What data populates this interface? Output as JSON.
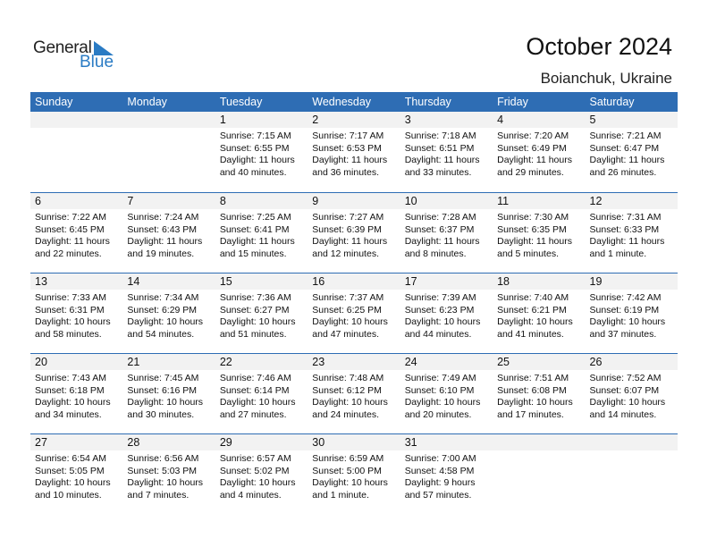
{
  "logo": {
    "general": "General",
    "blue": "Blue"
  },
  "title": "October 2024",
  "location": "Boianchuk, Ukraine",
  "colors": {
    "header": "#2E6DB4",
    "band": "#F2F2F2",
    "logo_blue": "#2a7bc4"
  },
  "weekdays": [
    "Sunday",
    "Monday",
    "Tuesday",
    "Wednesday",
    "Thursday",
    "Friday",
    "Saturday"
  ],
  "weeks": [
    [
      null,
      null,
      {
        "day": "1",
        "lines": [
          "Sunrise: 7:15 AM",
          "Sunset: 6:55 PM",
          "Daylight: 11 hours",
          "and 40 minutes."
        ]
      },
      {
        "day": "2",
        "lines": [
          "Sunrise: 7:17 AM",
          "Sunset: 6:53 PM",
          "Daylight: 11 hours",
          "and 36 minutes."
        ]
      },
      {
        "day": "3",
        "lines": [
          "Sunrise: 7:18 AM",
          "Sunset: 6:51 PM",
          "Daylight: 11 hours",
          "and 33 minutes."
        ]
      },
      {
        "day": "4",
        "lines": [
          "Sunrise: 7:20 AM",
          "Sunset: 6:49 PM",
          "Daylight: 11 hours",
          "and 29 minutes."
        ]
      },
      {
        "day": "5",
        "lines": [
          "Sunrise: 7:21 AM",
          "Sunset: 6:47 PM",
          "Daylight: 11 hours",
          "and 26 minutes."
        ]
      }
    ],
    [
      {
        "day": "6",
        "lines": [
          "Sunrise: 7:22 AM",
          "Sunset: 6:45 PM",
          "Daylight: 11 hours",
          "and 22 minutes."
        ]
      },
      {
        "day": "7",
        "lines": [
          "Sunrise: 7:24 AM",
          "Sunset: 6:43 PM",
          "Daylight: 11 hours",
          "and 19 minutes."
        ]
      },
      {
        "day": "8",
        "lines": [
          "Sunrise: 7:25 AM",
          "Sunset: 6:41 PM",
          "Daylight: 11 hours",
          "and 15 minutes."
        ]
      },
      {
        "day": "9",
        "lines": [
          "Sunrise: 7:27 AM",
          "Sunset: 6:39 PM",
          "Daylight: 11 hours",
          "and 12 minutes."
        ]
      },
      {
        "day": "10",
        "lines": [
          "Sunrise: 7:28 AM",
          "Sunset: 6:37 PM",
          "Daylight: 11 hours",
          "and 8 minutes."
        ]
      },
      {
        "day": "11",
        "lines": [
          "Sunrise: 7:30 AM",
          "Sunset: 6:35 PM",
          "Daylight: 11 hours",
          "and 5 minutes."
        ]
      },
      {
        "day": "12",
        "lines": [
          "Sunrise: 7:31 AM",
          "Sunset: 6:33 PM",
          "Daylight: 11 hours",
          "and 1 minute."
        ]
      }
    ],
    [
      {
        "day": "13",
        "lines": [
          "Sunrise: 7:33 AM",
          "Sunset: 6:31 PM",
          "Daylight: 10 hours",
          "and 58 minutes."
        ]
      },
      {
        "day": "14",
        "lines": [
          "Sunrise: 7:34 AM",
          "Sunset: 6:29 PM",
          "Daylight: 10 hours",
          "and 54 minutes."
        ]
      },
      {
        "day": "15",
        "lines": [
          "Sunrise: 7:36 AM",
          "Sunset: 6:27 PM",
          "Daylight: 10 hours",
          "and 51 minutes."
        ]
      },
      {
        "day": "16",
        "lines": [
          "Sunrise: 7:37 AM",
          "Sunset: 6:25 PM",
          "Daylight: 10 hours",
          "and 47 minutes."
        ]
      },
      {
        "day": "17",
        "lines": [
          "Sunrise: 7:39 AM",
          "Sunset: 6:23 PM",
          "Daylight: 10 hours",
          "and 44 minutes."
        ]
      },
      {
        "day": "18",
        "lines": [
          "Sunrise: 7:40 AM",
          "Sunset: 6:21 PM",
          "Daylight: 10 hours",
          "and 41 minutes."
        ]
      },
      {
        "day": "19",
        "lines": [
          "Sunrise: 7:42 AM",
          "Sunset: 6:19 PM",
          "Daylight: 10 hours",
          "and 37 minutes."
        ]
      }
    ],
    [
      {
        "day": "20",
        "lines": [
          "Sunrise: 7:43 AM",
          "Sunset: 6:18 PM",
          "Daylight: 10 hours",
          "and 34 minutes."
        ]
      },
      {
        "day": "21",
        "lines": [
          "Sunrise: 7:45 AM",
          "Sunset: 6:16 PM",
          "Daylight: 10 hours",
          "and 30 minutes."
        ]
      },
      {
        "day": "22",
        "lines": [
          "Sunrise: 7:46 AM",
          "Sunset: 6:14 PM",
          "Daylight: 10 hours",
          "and 27 minutes."
        ]
      },
      {
        "day": "23",
        "lines": [
          "Sunrise: 7:48 AM",
          "Sunset: 6:12 PM",
          "Daylight: 10 hours",
          "and 24 minutes."
        ]
      },
      {
        "day": "24",
        "lines": [
          "Sunrise: 7:49 AM",
          "Sunset: 6:10 PM",
          "Daylight: 10 hours",
          "and 20 minutes."
        ]
      },
      {
        "day": "25",
        "lines": [
          "Sunrise: 7:51 AM",
          "Sunset: 6:08 PM",
          "Daylight: 10 hours",
          "and 17 minutes."
        ]
      },
      {
        "day": "26",
        "lines": [
          "Sunrise: 7:52 AM",
          "Sunset: 6:07 PM",
          "Daylight: 10 hours",
          "and 14 minutes."
        ]
      }
    ],
    [
      {
        "day": "27",
        "lines": [
          "Sunrise: 6:54 AM",
          "Sunset: 5:05 PM",
          "Daylight: 10 hours",
          "and 10 minutes."
        ]
      },
      {
        "day": "28",
        "lines": [
          "Sunrise: 6:56 AM",
          "Sunset: 5:03 PM",
          "Daylight: 10 hours",
          "and 7 minutes."
        ]
      },
      {
        "day": "29",
        "lines": [
          "Sunrise: 6:57 AM",
          "Sunset: 5:02 PM",
          "Daylight: 10 hours",
          "and 4 minutes."
        ]
      },
      {
        "day": "30",
        "lines": [
          "Sunrise: 6:59 AM",
          "Sunset: 5:00 PM",
          "Daylight: 10 hours",
          "and 1 minute."
        ]
      },
      {
        "day": "31",
        "lines": [
          "Sunrise: 7:00 AM",
          "Sunset: 4:58 PM",
          "Daylight: 9 hours",
          "and 57 minutes."
        ]
      },
      null,
      null
    ]
  ]
}
